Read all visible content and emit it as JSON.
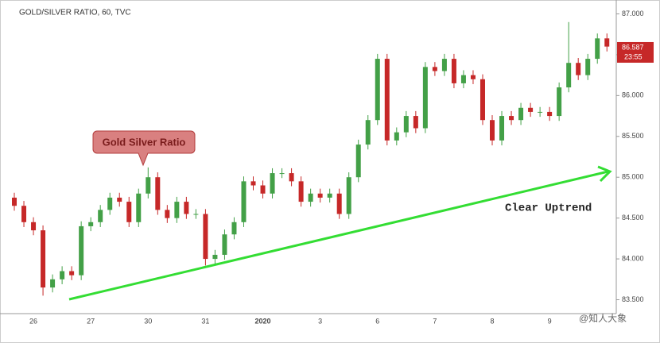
{
  "chart_data": {
    "type": "candlestick",
    "title": "GOLD/SILVER RATIO, 60, TVC",
    "categories": [
      null,
      null,
      "26",
      null,
      null,
      null,
      null,
      null,
      "27",
      null,
      null,
      null,
      null,
      null,
      "30",
      null,
      null,
      null,
      null,
      null,
      "31",
      null,
      null,
      null,
      null,
      null,
      "2020",
      null,
      null,
      null,
      null,
      null,
      "3",
      null,
      null,
      null,
      null,
      null,
      "6",
      null,
      null,
      null,
      null,
      null,
      "7",
      null,
      null,
      null,
      null,
      null,
      "8",
      null,
      null,
      null,
      null,
      null,
      "9",
      null,
      null,
      null,
      null,
      null,
      null
    ],
    "open": [
      84.75,
      84.65,
      84.45,
      84.35,
      83.65,
      83.75,
      83.85,
      83.8,
      84.4,
      84.45,
      84.6,
      84.75,
      84.7,
      84.45,
      84.8,
      85.0,
      84.6,
      84.5,
      84.7,
      84.55,
      84.55,
      84.0,
      84.05,
      84.3,
      84.45,
      84.95,
      84.9,
      84.8,
      85.05,
      85.05,
      84.95,
      84.7,
      84.8,
      84.75,
      84.8,
      84.55,
      85.0,
      85.4,
      85.7,
      86.45,
      85.45,
      85.55,
      85.75,
      85.6,
      86.35,
      86.3,
      86.45,
      86.15,
      86.25,
      86.2,
      85.7,
      85.45,
      85.75,
      85.7,
      85.85,
      85.8,
      85.8,
      85.75,
      86.1,
      86.4,
      86.25,
      86.45,
      86.7
    ],
    "high": [
      84.81,
      84.71,
      84.51,
      84.41,
      83.81,
      83.91,
      83.91,
      84.46,
      84.51,
      84.66,
      84.81,
      84.81,
      84.76,
      84.86,
      85.12,
      85.06,
      84.66,
      84.76,
      84.76,
      84.61,
      84.61,
      84.11,
      84.36,
      84.51,
      85.01,
      85.01,
      84.96,
      85.11,
      85.11,
      85.11,
      85.01,
      84.86,
      84.86,
      84.86,
      84.86,
      85.06,
      85.46,
      85.76,
      86.51,
      86.51,
      85.61,
      85.81,
      85.81,
      86.41,
      86.41,
      86.51,
      86.51,
      86.31,
      86.31,
      86.26,
      85.76,
      85.81,
      85.81,
      85.91,
      85.91,
      85.86,
      85.86,
      86.16,
      86.9,
      86.46,
      86.51,
      86.76,
      86.76
    ],
    "low": [
      84.59,
      84.39,
      84.29,
      83.55,
      83.59,
      83.69,
      83.74,
      83.74,
      84.34,
      84.39,
      84.54,
      84.64,
      84.39,
      84.39,
      84.74,
      84.54,
      84.44,
      84.44,
      84.49,
      84.49,
      83.92,
      83.94,
      83.99,
      84.24,
      84.39,
      84.84,
      84.74,
      84.74,
      84.99,
      84.89,
      84.64,
      84.64,
      84.69,
      84.69,
      84.49,
      84.49,
      84.94,
      85.34,
      85.64,
      85.39,
      85.39,
      85.49,
      85.54,
      85.54,
      86.24,
      86.24,
      86.09,
      86.09,
      86.14,
      85.64,
      85.39,
      85.39,
      85.64,
      85.64,
      85.74,
      85.74,
      85.69,
      85.69,
      86.04,
      86.19,
      86.19,
      86.39,
      86.54
    ],
    "close": [
      84.65,
      84.45,
      84.35,
      83.65,
      83.75,
      83.85,
      83.8,
      84.4,
      84.45,
      84.6,
      84.75,
      84.7,
      84.45,
      84.8,
      85.0,
      84.6,
      84.5,
      84.7,
      84.55,
      84.55,
      84.0,
      84.05,
      84.3,
      84.45,
      84.95,
      84.9,
      84.8,
      85.05,
      85.05,
      84.95,
      84.7,
      84.8,
      84.75,
      84.8,
      84.55,
      85.0,
      85.4,
      85.7,
      86.45,
      85.45,
      85.55,
      85.75,
      85.6,
      86.35,
      86.3,
      86.45,
      86.15,
      86.25,
      86.2,
      85.7,
      85.45,
      85.75,
      85.7,
      85.85,
      85.8,
      85.8,
      85.75,
      86.1,
      86.4,
      86.25,
      86.45,
      86.7,
      86.6
    ],
    "up_color": "#43a047",
    "down_color": "#c62828",
    "ylim": [
      83.33,
      87.17
    ],
    "yticks": [
      {
        "value": 83.5,
        "label": "83.500"
      },
      {
        "value": 84.0,
        "label": "84.000"
      },
      {
        "value": 84.5,
        "label": "84.500"
      },
      {
        "value": 85.0,
        "label": "85.000"
      },
      {
        "value": 85.5,
        "label": "85.500"
      },
      {
        "value": 86.0,
        "label": "86.000"
      },
      {
        "value": 86.5,
        "label": "86.500"
      },
      {
        "value": 87.0,
        "label": "87.000"
      }
    ],
    "last_price": 86.587,
    "countdown": "23:55",
    "callout": "Gold Silver Ratio",
    "trend_label": "Clear Uptrend",
    "watermark": "@知人大象"
  }
}
